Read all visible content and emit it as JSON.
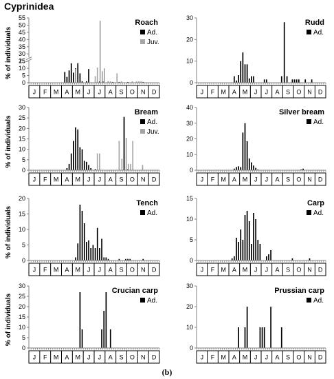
{
  "figure": {
    "title": "Cyprinidea",
    "caption": "(b)",
    "months": [
      "J",
      "F",
      "M",
      "A",
      "M",
      "J",
      "J",
      "A",
      "S",
      "O",
      "N",
      "D"
    ],
    "colors": {
      "adult": "#000000",
      "juvenile": "#a6a6a6",
      "axis": "#808080"
    }
  },
  "chart_data": [
    {
      "type": "bar",
      "title": "Roach",
      "ylabel": "% of individuals",
      "ylim": [
        0,
        55
      ],
      "y_axis_break": [
        15,
        25
      ],
      "yticks": [
        0,
        5,
        10,
        15,
        25,
        30,
        35,
        40,
        45,
        50,
        55
      ],
      "legend_position": "top-right",
      "series": [
        {
          "name": "Ad.",
          "points": [
            [
              3.3,
              7.5
            ],
            [
              3.5,
              4
            ],
            [
              3.7,
              8.5
            ],
            [
              3.9,
              13.5
            ],
            [
              4.1,
              7
            ],
            [
              4.3,
              10
            ],
            [
              4.5,
              13.5
            ],
            [
              4.7,
              6.5
            ],
            [
              4.9,
              1
            ],
            [
              5.3,
              1
            ],
            [
              5.5,
              9.5
            ],
            [
              6.3,
              1
            ],
            [
              6.5,
              1
            ],
            [
              6.8,
              1
            ],
            [
              7.3,
              1
            ],
            [
              7.7,
              0.5
            ],
            [
              8.3,
              0.5
            ],
            [
              9.1,
              0.5
            ],
            [
              10.5,
              0.5
            ]
          ]
        },
        {
          "name": "Juv.",
          "points": [
            [
              4.3,
              9.5
            ],
            [
              6.1,
              4.5
            ],
            [
              6.3,
              10.5
            ],
            [
              6.55,
              53
            ],
            [
              6.75,
              8
            ],
            [
              6.95,
              10
            ],
            [
              7.3,
              1
            ],
            [
              7.5,
              1
            ],
            [
              8.1,
              6.5
            ],
            [
              8.5,
              1
            ],
            [
              9.5,
              1
            ],
            [
              9.9,
              1
            ],
            [
              10.1,
              1
            ],
            [
              10.3,
              1
            ]
          ]
        }
      ]
    },
    {
      "type": "bar",
      "title": "Rudd",
      "ylabel": "",
      "ylim": [
        0,
        30
      ],
      "yticks": [
        0,
        10,
        20,
        30
      ],
      "legend_position": "top-right",
      "series": [
        {
          "name": "Ad.",
          "points": [
            [
              3.5,
              3
            ],
            [
              3.7,
              1
            ],
            [
              3.9,
              3.5
            ],
            [
              4.1,
              10
            ],
            [
              4.3,
              14
            ],
            [
              4.5,
              8.5
            ],
            [
              4.7,
              8.5
            ],
            [
              4.9,
              2
            ],
            [
              5.1,
              3
            ],
            [
              5.3,
              3
            ],
            [
              6.3,
              1.5
            ],
            [
              6.5,
              1.5
            ],
            [
              7.9,
              3
            ],
            [
              8.15,
              28
            ],
            [
              8.4,
              3
            ],
            [
              8.9,
              1.5
            ],
            [
              9.1,
              1.5
            ],
            [
              9.3,
              1.5
            ],
            [
              9.5,
              1.5
            ],
            [
              10.1,
              1.5
            ],
            [
              10.7,
              1.5
            ]
          ]
        }
      ]
    },
    {
      "type": "bar",
      "title": "Bream",
      "ylabel": "% of individuals",
      "ylim": [
        0,
        30
      ],
      "yticks": [
        0,
        5,
        10,
        15,
        20,
        25,
        30
      ],
      "legend_position": "top-right",
      "series": [
        {
          "name": "Ad.",
          "points": [
            [
              3.5,
              1
            ],
            [
              3.7,
              3
            ],
            [
              3.9,
              8
            ],
            [
              4.1,
              14
            ],
            [
              4.3,
              20.5
            ],
            [
              4.5,
              19.5
            ],
            [
              4.7,
              11
            ],
            [
              4.9,
              10
            ],
            [
              5.1,
              4.5
            ],
            [
              5.3,
              4
            ],
            [
              5.5,
              2.5
            ],
            [
              5.7,
              1
            ],
            [
              6.1,
              0.5
            ],
            [
              8.3,
              0.5
            ],
            [
              8.75,
              25.5
            ],
            [
              9.1,
              0.5
            ]
          ]
        },
        {
          "name": "Juv.",
          "points": [
            [
              6.3,
              8
            ],
            [
              6.5,
              8
            ],
            [
              8.3,
              14
            ],
            [
              8.55,
              5.5
            ],
            [
              8.95,
              15.5
            ],
            [
              9.15,
              3
            ],
            [
              9.35,
              3
            ],
            [
              9.55,
              14
            ],
            [
              10.45,
              2.5
            ]
          ]
        }
      ]
    },
    {
      "type": "bar",
      "title": "Silver bream",
      "ylabel": "",
      "ylim": [
        0,
        40
      ],
      "yticks": [
        0,
        10,
        20,
        30,
        40
      ],
      "legend_position": "top-right",
      "series": [
        {
          "name": "Ad.",
          "points": [
            [
              3.5,
              1
            ],
            [
              3.7,
              2
            ],
            [
              3.9,
              2.5
            ],
            [
              4.1,
              2
            ],
            [
              4.3,
              24
            ],
            [
              4.5,
              30
            ],
            [
              4.7,
              18.5
            ],
            [
              4.9,
              7.5
            ],
            [
              5.1,
              5
            ],
            [
              5.3,
              3
            ],
            [
              5.5,
              1.5
            ],
            [
              5.7,
              0.5
            ],
            [
              9.7,
              0.5
            ],
            [
              9.9,
              1
            ]
          ]
        }
      ]
    },
    {
      "type": "bar",
      "title": "Tench",
      "ylabel": "% of individuals",
      "ylim": [
        0,
        20
      ],
      "yticks": [
        0,
        5,
        10,
        15,
        20
      ],
      "legend_position": "top-right",
      "series": [
        {
          "name": "Ad.",
          "points": [
            [
              4.3,
              1
            ],
            [
              4.5,
              5.5
            ],
            [
              4.7,
              18
            ],
            [
              4.9,
              16
            ],
            [
              5.1,
              12
            ],
            [
              5.3,
              6
            ],
            [
              5.5,
              6.5
            ],
            [
              5.7,
              4
            ],
            [
              5.9,
              5
            ],
            [
              6.1,
              4
            ],
            [
              6.3,
              10.5
            ],
            [
              6.5,
              4
            ],
            [
              6.7,
              7
            ],
            [
              6.9,
              1
            ],
            [
              7.1,
              1
            ],
            [
              7.3,
              0.5
            ],
            [
              8.3,
              0.5
            ],
            [
              8.9,
              0.5
            ],
            [
              9.1,
              0.5
            ],
            [
              9.3,
              0.5
            ],
            [
              10.5,
              0.5
            ]
          ]
        }
      ]
    },
    {
      "type": "bar",
      "title": "Carp",
      "ylabel": "",
      "ylim": [
        0,
        15
      ],
      "yticks": [
        0,
        5,
        10,
        15
      ],
      "legend_position": "top-right",
      "series": [
        {
          "name": "Ad.",
          "points": [
            [
              3.3,
              0.5
            ],
            [
              3.5,
              1
            ],
            [
              3.7,
              5.5
            ],
            [
              3.9,
              4.5
            ],
            [
              4.1,
              7.5
            ],
            [
              4.3,
              5
            ],
            [
              4.5,
              11
            ],
            [
              4.7,
              12
            ],
            [
              4.9,
              9.5
            ],
            [
              5.1,
              4
            ],
            [
              5.3,
              11.5
            ],
            [
              5.5,
              10
            ],
            [
              5.7,
              5
            ],
            [
              5.9,
              4
            ],
            [
              6.5,
              1
            ],
            [
              6.7,
              1.5
            ],
            [
              6.9,
              2.5
            ],
            [
              8.9,
              0.5
            ],
            [
              10.5,
              0.5
            ]
          ]
        }
      ]
    },
    {
      "type": "bar",
      "title": "Crucian carp",
      "ylabel": "% of individuals",
      "ylim": [
        0,
        30
      ],
      "yticks": [
        0,
        5,
        10,
        15,
        20,
        25,
        30
      ],
      "legend_position": "top-right",
      "series": [
        {
          "name": "Ad.",
          "points": [
            [
              4.7,
              27
            ],
            [
              4.9,
              9
            ],
            [
              6.7,
              9
            ],
            [
              6.9,
              18
            ],
            [
              7.1,
              27
            ],
            [
              7.5,
              9
            ]
          ]
        }
      ]
    },
    {
      "type": "bar",
      "title": "Prussian carp",
      "ylabel": "",
      "ylim": [
        0,
        30
      ],
      "yticks": [
        0,
        10,
        20,
        30
      ],
      "legend_position": "top-right",
      "series": [
        {
          "name": "Ad.",
          "points": [
            [
              3.9,
              10
            ],
            [
              4.5,
              10
            ],
            [
              4.7,
              20
            ],
            [
              5.9,
              10
            ],
            [
              6.1,
              10
            ],
            [
              6.3,
              10
            ],
            [
              6.9,
              20
            ],
            [
              7.9,
              10
            ]
          ]
        }
      ]
    }
  ]
}
